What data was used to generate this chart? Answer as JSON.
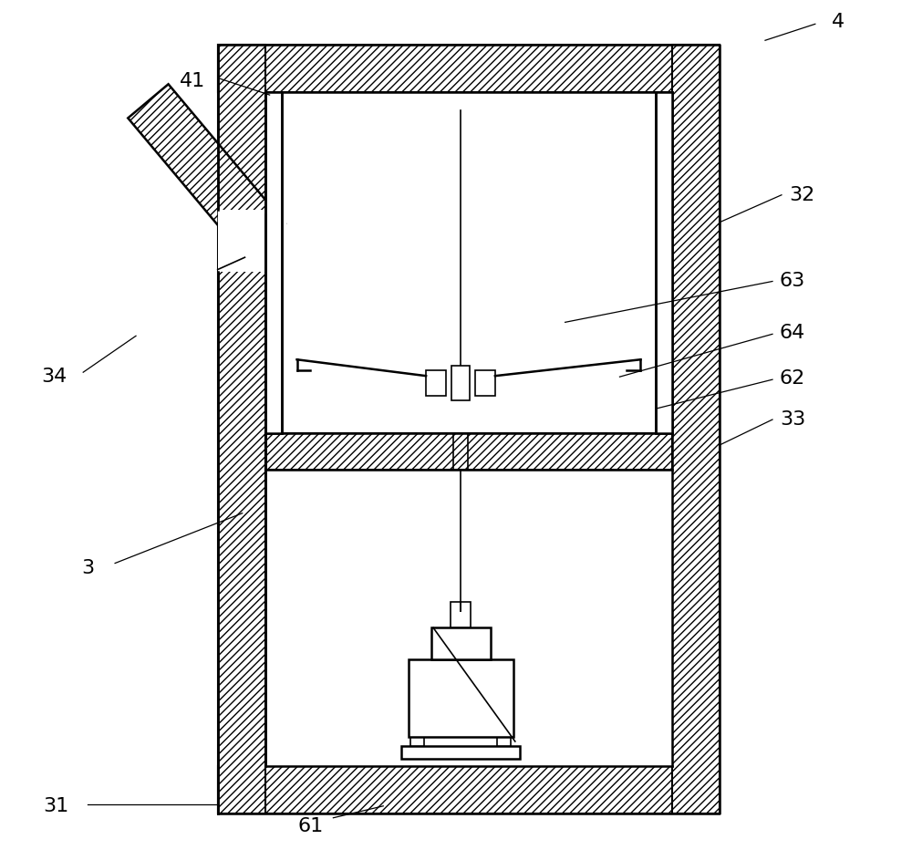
{
  "bg_color": "#ffffff",
  "line_color": "#000000",
  "fig_width": 10.0,
  "fig_height": 9.43,
  "dpi": 100
}
